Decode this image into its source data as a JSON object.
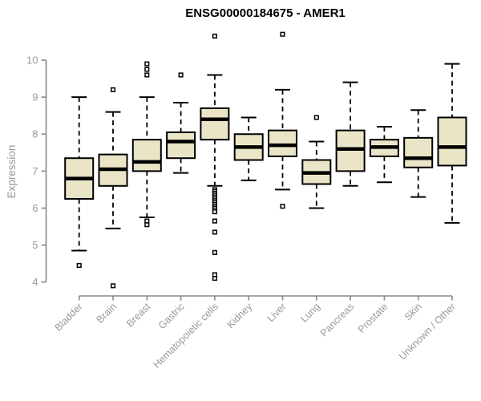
{
  "chart_data": {
    "type": "boxplot",
    "title": "ENSG00000184675 - AMER1",
    "ylabel": "Expression",
    "xlabel": "",
    "ylim": [
      4,
      10
    ],
    "yticks": [
      4,
      5,
      6,
      7,
      8,
      9,
      10
    ],
    "grid": false,
    "legend": "none",
    "colors": {
      "box_fill": "#EBE5C7",
      "box_stroke": "#000000",
      "median": "#000000",
      "whisker": "#000000",
      "axis": "#888888",
      "axis_text": "#999999",
      "title_text": "#000000",
      "background": "#ffffff"
    },
    "categories": [
      "Bladder",
      "Brain",
      "Breast",
      "Gastric",
      "Hematopoietic cells",
      "Kidney",
      "Liver",
      "Lung",
      "Pancreas",
      "Prostate",
      "Skin",
      "Unknown / Other"
    ],
    "series": [
      {
        "name": "Bladder",
        "whisker_low": 4.85,
        "q1": 6.25,
        "median": 6.8,
        "q3": 7.35,
        "whisker_high": 9.0,
        "outliers": [
          4.45
        ]
      },
      {
        "name": "Brain",
        "whisker_low": 5.45,
        "q1": 6.6,
        "median": 7.05,
        "q3": 7.45,
        "whisker_high": 8.6,
        "outliers": [
          9.2,
          3.9
        ]
      },
      {
        "name": "Breast",
        "whisker_low": 5.75,
        "q1": 7.0,
        "median": 7.25,
        "q3": 7.85,
        "whisker_high": 9.0,
        "outliers": [
          9.9,
          9.75,
          9.6,
          5.65,
          5.55
        ]
      },
      {
        "name": "Gastric",
        "whisker_low": 6.95,
        "q1": 7.35,
        "median": 7.8,
        "q3": 8.05,
        "whisker_high": 8.85,
        "outliers": [
          9.6
        ]
      },
      {
        "name": "Hematopoietic cells",
        "whisker_low": 6.6,
        "q1": 7.85,
        "median": 8.4,
        "q3": 8.7,
        "whisker_high": 9.6,
        "outliers": [
          10.65,
          6.5,
          6.45,
          6.4,
          6.35,
          6.3,
          6.25,
          6.2,
          6.15,
          6.1,
          6.05,
          6.0,
          5.95,
          5.9,
          5.65,
          5.35,
          4.8,
          4.2,
          4.1
        ]
      },
      {
        "name": "Kidney",
        "whisker_low": 6.75,
        "q1": 7.3,
        "median": 7.65,
        "q3": 8.0,
        "whisker_high": 8.45,
        "outliers": []
      },
      {
        "name": "Liver",
        "whisker_low": 6.5,
        "q1": 7.4,
        "median": 7.7,
        "q3": 8.1,
        "whisker_high": 9.2,
        "outliers": [
          10.7,
          6.05
        ]
      },
      {
        "name": "Lung",
        "whisker_low": 6.0,
        "q1": 6.65,
        "median": 6.95,
        "q3": 7.3,
        "whisker_high": 7.8,
        "outliers": [
          8.45
        ]
      },
      {
        "name": "Pancreas",
        "whisker_low": 6.6,
        "q1": 7.0,
        "median": 7.6,
        "q3": 8.1,
        "whisker_high": 9.4,
        "outliers": []
      },
      {
        "name": "Prostate",
        "whisker_low": 6.7,
        "q1": 7.4,
        "median": 7.65,
        "q3": 7.85,
        "whisker_high": 8.2,
        "outliers": []
      },
      {
        "name": "Skin",
        "whisker_low": 6.3,
        "q1": 7.1,
        "median": 7.35,
        "q3": 7.9,
        "whisker_high": 8.65,
        "outliers": []
      },
      {
        "name": "Unknown / Other",
        "whisker_low": 5.6,
        "q1": 7.15,
        "median": 7.65,
        "q3": 8.45,
        "whisker_high": 9.9,
        "outliers": []
      }
    ]
  }
}
